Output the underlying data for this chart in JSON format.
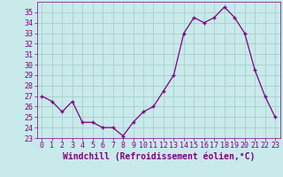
{
  "x": [
    0,
    1,
    2,
    3,
    4,
    5,
    6,
    7,
    8,
    9,
    10,
    11,
    12,
    13,
    14,
    15,
    16,
    17,
    18,
    19,
    20,
    21,
    22,
    23
  ],
  "y": [
    27.0,
    26.5,
    25.5,
    26.5,
    24.5,
    24.5,
    24.0,
    24.0,
    23.2,
    24.5,
    25.5,
    26.0,
    27.5,
    29.0,
    33.0,
    34.5,
    34.0,
    34.5,
    35.5,
    34.5,
    33.0,
    29.5,
    27.0,
    25.0
  ],
  "line_color": "#800080",
  "marker": "+",
  "bg_color": "#c8eaea",
  "grid_color": "#a0c8c8",
  "xlabel": "Windchill (Refroidissement éolien,°C)",
  "ylabel": "",
  "title": "",
  "ylim": [
    23,
    36
  ],
  "yticks": [
    23,
    24,
    25,
    26,
    27,
    28,
    29,
    30,
    31,
    32,
    33,
    34,
    35
  ],
  "xlim": [
    -0.5,
    23.5
  ],
  "xticks": [
    0,
    1,
    2,
    3,
    4,
    5,
    6,
    7,
    8,
    9,
    10,
    11,
    12,
    13,
    14,
    15,
    16,
    17,
    18,
    19,
    20,
    21,
    22,
    23
  ],
  "tick_color": "#800080",
  "xlabel_fontsize": 7.0,
  "xlabel_color": "#800080",
  "tick_fontsize": 6.0,
  "spine_color": "#800080"
}
